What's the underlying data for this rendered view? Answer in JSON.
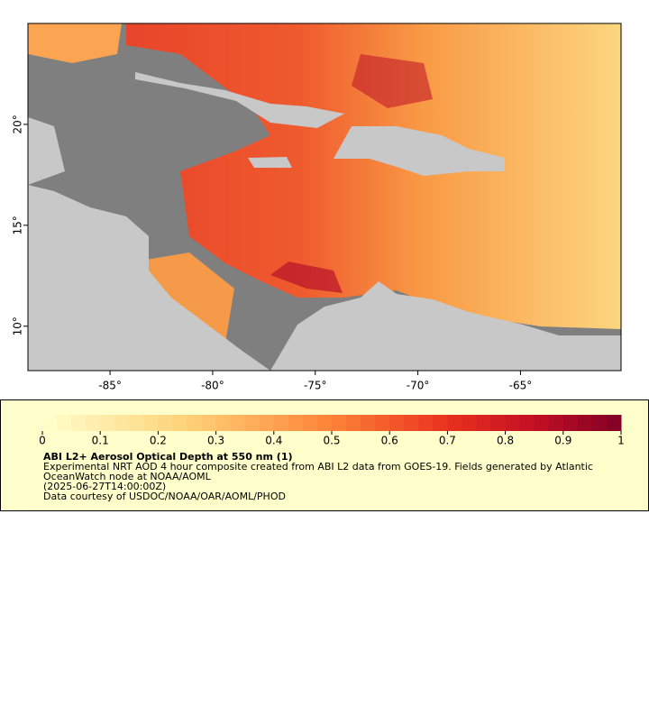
{
  "map": {
    "xlim": [
      -89,
      -60.1
    ],
    "ylim": [
      7.8,
      25
    ],
    "xticks": [
      {
        "value": -85,
        "label": "-85°"
      },
      {
        "value": -80,
        "label": "-80°"
      },
      {
        "value": -75,
        "label": "-75°"
      },
      {
        "value": -70,
        "label": "-70°"
      },
      {
        "value": -65,
        "label": "-65°"
      }
    ],
    "yticks": [
      {
        "value": 10,
        "label": "10°"
      },
      {
        "value": 15,
        "label": "15°"
      },
      {
        "value": 20,
        "label": "20°"
      }
    ]
  },
  "colorbar": {
    "lim": [
      0,
      1
    ],
    "ticks": [
      0,
      0.1,
      0.2,
      0.3,
      0.4,
      0.5,
      0.6,
      0.7,
      0.8,
      0.9,
      1
    ]
  },
  "legend": {
    "title": "ABI L2+ Aerosol Optical Depth at 550 nm (1)",
    "lines": [
      "Experimental NRT AOD 4 hour composite created from ABI L2 data from GOES-19. Fields generated by Atlantic",
      "OceanWatch node at NOAA/AOML",
      "(2025-06-27T14:00:00Z)",
      "Data courtesy of USDOC/NOAA/OAR/AOML/PHOD"
    ]
  }
}
